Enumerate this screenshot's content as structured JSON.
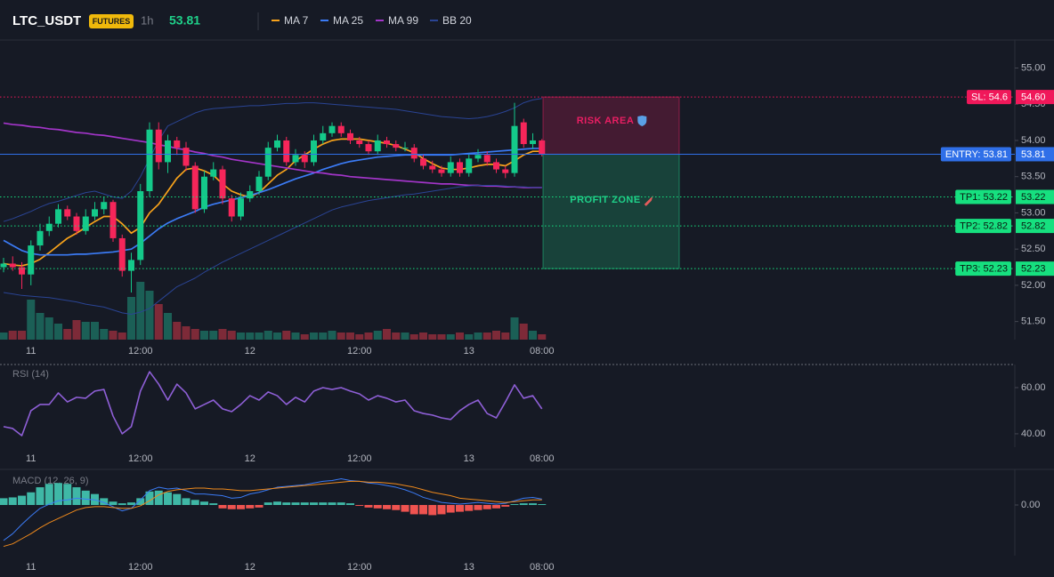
{
  "header": {
    "symbol": "LTC_USDT",
    "badge": "FUTURES",
    "interval": "1h",
    "last_price": 53.81
  },
  "chart_data": [
    {
      "type": "candlestick",
      "categories": [
        null,
        null,
        null,
        "11",
        null,
        null,
        null,
        null,
        null,
        null,
        null,
        null,
        null,
        null,
        null,
        "12:00",
        null,
        null,
        null,
        null,
        null,
        null,
        null,
        null,
        null,
        null,
        null,
        "12",
        null,
        null,
        null,
        null,
        null,
        null,
        null,
        null,
        null,
        null,
        null,
        "12:00",
        null,
        null,
        null,
        null,
        null,
        null,
        null,
        null,
        null,
        null,
        null,
        "13",
        null,
        null,
        null,
        null,
        null,
        null,
        null,
        "08:00"
      ],
      "ylim": [
        51.25,
        55.35
      ],
      "yticks": [
        {
          "value": 55,
          "label": "55.00"
        },
        {
          "value": 54.5,
          "label": "54.50"
        },
        {
          "value": 54,
          "label": "54.00"
        },
        {
          "value": 53.5,
          "label": "53.50"
        },
        {
          "value": 53,
          "label": "53.00"
        },
        {
          "value": 52.5,
          "label": "52.50"
        },
        {
          "value": 52,
          "label": "52.00"
        },
        {
          "value": 51.5,
          "label": "51.50"
        }
      ],
      "up_color": "#14c98a",
      "down_color": "#f6265a",
      "volume_up_color": "#1b5f56",
      "volume_down_color": "#7d2a38",
      "open": [
        52.25,
        52.3,
        52.25,
        52.15,
        52.55,
        52.75,
        52.85,
        53.05,
        52.95,
        52.75,
        52.95,
        53.05,
        53.15,
        52.65,
        52.2,
        52.35,
        53.3,
        54.15,
        53.7,
        54.0,
        53.9,
        53.65,
        53.05,
        53.5,
        53.6,
        53.2,
        52.95,
        53.2,
        53.3,
        53.5,
        53.9,
        54.0,
        53.7,
        53.8,
        53.7,
        54.0,
        54.1,
        54.2,
        54.1,
        54.0,
        53.95,
        53.85,
        54.0,
        53.95,
        53.9,
        53.9,
        53.75,
        53.65,
        53.6,
        53.55,
        53.7,
        53.55,
        53.75,
        53.8,
        53.7,
        53.6,
        53.55,
        54.25,
        53.95,
        54.0
      ],
      "high": [
        52.38,
        52.4,
        52.32,
        52.62,
        52.85,
        52.95,
        53.12,
        53.1,
        53.0,
        53.05,
        53.15,
        53.22,
        53.18,
        52.7,
        52.45,
        53.4,
        54.25,
        54.25,
        54.08,
        54.05,
        53.98,
        53.7,
        53.58,
        53.7,
        53.65,
        53.25,
        53.28,
        53.38,
        53.58,
        53.98,
        54.08,
        54.05,
        53.88,
        53.85,
        54.08,
        54.2,
        54.25,
        54.25,
        54.15,
        54.05,
        54.0,
        54.08,
        54.05,
        54.0,
        53.98,
        53.95,
        53.8,
        53.72,
        53.65,
        53.78,
        53.75,
        53.82,
        53.88,
        53.85,
        53.75,
        53.65,
        54.52,
        54.3,
        54.1,
        54.02
      ],
      "low": [
        52.18,
        52.2,
        51.95,
        52.0,
        52.48,
        52.68,
        52.8,
        52.9,
        52.7,
        52.7,
        52.9,
        52.98,
        52.6,
        52.12,
        51.9,
        52.28,
        53.22,
        53.6,
        53.55,
        53.8,
        53.58,
        53.0,
        53.0,
        53.45,
        53.12,
        52.88,
        52.9,
        53.15,
        53.25,
        53.45,
        53.85,
        53.65,
        53.65,
        53.62,
        53.65,
        53.95,
        54.05,
        54.05,
        53.95,
        53.9,
        53.8,
        53.8,
        53.9,
        53.85,
        53.85,
        53.7,
        53.6,
        53.55,
        53.5,
        53.5,
        53.5,
        53.5,
        53.7,
        53.65,
        53.55,
        53.48,
        53.5,
        53.9,
        53.88,
        53.78
      ],
      "close": [
        52.3,
        52.25,
        52.15,
        52.55,
        52.75,
        52.85,
        53.05,
        52.95,
        52.75,
        52.95,
        53.05,
        53.15,
        52.65,
        52.2,
        52.35,
        53.3,
        54.15,
        53.7,
        54.0,
        53.9,
        53.65,
        53.05,
        53.5,
        53.6,
        53.2,
        52.95,
        53.2,
        53.3,
        53.5,
        53.9,
        54.0,
        53.7,
        53.8,
        53.7,
        54.0,
        54.1,
        54.2,
        54.1,
        54.0,
        53.95,
        53.85,
        54.0,
        53.95,
        53.9,
        53.9,
        53.75,
        53.65,
        53.6,
        53.55,
        53.7,
        53.55,
        53.75,
        53.8,
        53.7,
        53.6,
        53.55,
        54.2,
        53.95,
        54.0,
        53.81
      ],
      "volume": [
        8,
        10,
        10,
        45,
        30,
        25,
        18,
        12,
        22,
        20,
        20,
        12,
        10,
        8,
        48,
        65,
        55,
        40,
        30,
        20,
        15,
        12,
        10,
        10,
        12,
        10,
        8,
        8,
        8,
        10,
        8,
        10,
        8,
        6,
        8,
        8,
        10,
        8,
        8,
        6,
        8,
        10,
        12,
        8,
        8,
        6,
        8,
        6,
        6,
        6,
        8,
        6,
        8,
        8,
        10,
        8,
        25,
        18,
        10,
        6
      ],
      "overlays": [
        {
          "name": "MA 7",
          "color": "#f7a21b",
          "values": [
            52.3,
            52.28,
            52.27,
            52.3,
            52.36,
            52.45,
            52.55,
            52.65,
            52.72,
            52.8,
            52.88,
            52.95,
            52.95,
            52.85,
            52.72,
            52.8,
            53.0,
            53.12,
            53.3,
            53.48,
            53.6,
            53.62,
            53.58,
            53.52,
            53.4,
            53.3,
            53.25,
            53.22,
            53.28,
            53.4,
            53.52,
            53.6,
            53.72,
            53.8,
            53.88,
            53.95,
            54.0,
            54.02,
            54.02,
            54.02,
            54.0,
            53.98,
            53.96,
            53.93,
            53.88,
            53.83,
            53.75,
            53.68,
            53.62,
            53.6,
            53.6,
            53.62,
            53.65,
            53.67,
            53.67,
            53.65,
            53.72,
            53.8,
            53.85,
            53.85
          ]
        },
        {
          "name": "MA 25",
          "color": "#3b7bf5",
          "values": [
            52.62,
            52.55,
            52.48,
            52.44,
            52.42,
            52.42,
            52.42,
            52.42,
            52.43,
            52.43,
            52.44,
            52.45,
            52.46,
            52.48,
            52.5,
            52.58,
            52.68,
            52.78,
            52.86,
            52.92,
            52.97,
            53.02,
            53.08,
            53.12,
            53.15,
            53.18,
            53.21,
            53.24,
            53.28,
            53.32,
            53.37,
            53.42,
            53.47,
            53.51,
            53.55,
            53.6,
            53.64,
            53.68,
            53.71,
            53.73,
            53.75,
            53.77,
            53.78,
            53.79,
            53.8,
            53.8,
            53.8,
            53.8,
            53.8,
            53.8,
            53.81,
            53.82,
            53.83,
            53.84,
            53.85,
            53.86,
            53.87,
            53.88,
            53.89,
            53.89
          ]
        },
        {
          "name": "MA 99",
          "color": "#a335c9",
          "values": [
            54.24,
            54.22,
            54.21,
            54.19,
            54.18,
            54.16,
            54.15,
            54.13,
            54.11,
            54.1,
            54.08,
            54.07,
            54.05,
            54.03,
            54.01,
            53.99,
            53.97,
            53.94,
            53.92,
            53.89,
            53.87,
            53.84,
            53.82,
            53.79,
            53.77,
            53.74,
            53.72,
            53.7,
            53.68,
            53.66,
            53.64,
            53.62,
            53.6,
            53.58,
            53.56,
            53.55,
            53.53,
            53.52,
            53.5,
            53.49,
            53.48,
            53.47,
            53.46,
            53.45,
            53.44,
            53.43,
            53.42,
            53.41,
            53.4,
            53.4,
            53.39,
            53.38,
            53.38,
            53.37,
            53.37,
            53.36,
            53.36,
            53.35,
            53.35,
            53.35
          ]
        },
        {
          "name": "BB 20",
          "color": "#2a4494",
          "upper": [
            52.88,
            52.92,
            52.97,
            53.02,
            53.08,
            53.13,
            53.16,
            53.2,
            53.24,
            53.28,
            53.3,
            53.26,
            53.22,
            53.2,
            53.3,
            53.5,
            53.75,
            54.0,
            54.2,
            54.26,
            54.32,
            54.38,
            54.42,
            54.44,
            54.45,
            54.46,
            54.47,
            54.48,
            54.48,
            54.49,
            54.5,
            54.51,
            54.51,
            54.52,
            54.52,
            54.51,
            54.5,
            54.49,
            54.48,
            54.47,
            54.46,
            54.45,
            54.44,
            54.43,
            54.41,
            54.39,
            54.37,
            54.35,
            54.33,
            54.32,
            54.31,
            54.3,
            54.31,
            54.33,
            54.36,
            54.4,
            54.45,
            54.52,
            54.56,
            54.58
          ],
          "lower": [
            51.9,
            51.88,
            51.86,
            51.85,
            51.84,
            51.83,
            51.81,
            51.79,
            51.77,
            51.74,
            51.72,
            51.7,
            51.66,
            51.62,
            51.6,
            51.63,
            51.68,
            51.78,
            51.88,
            51.98,
            52.04,
            52.1,
            52.18,
            52.25,
            52.32,
            52.38,
            52.44,
            52.5,
            52.56,
            52.62,
            52.68,
            52.74,
            52.8,
            52.86,
            52.92,
            52.98,
            53.04,
            53.08,
            53.11,
            53.14,
            53.17,
            53.19,
            53.21,
            53.23,
            53.25,
            53.26,
            53.28,
            53.3,
            53.32,
            53.34,
            53.36,
            53.37,
            53.38,
            53.38,
            53.38,
            53.37,
            53.36,
            53.36,
            53.35,
            53.35
          ]
        }
      ],
      "levels": [
        {
          "name": "SL: 54.6",
          "value": 54.6,
          "value_label": "54.60",
          "color": "#f0185a",
          "text_color": "#ffffff",
          "style": "dotted"
        },
        {
          "name": "ENTRY: 53.81",
          "value": 53.81,
          "value_label": "53.81",
          "color": "#2f6fe8",
          "text_color": "#ffffff",
          "style": "solid"
        },
        {
          "name": "TP1: 53.22",
          "value": 53.22,
          "value_label": "53.22",
          "color": "#16e07f",
          "text_color": "#0b1a12",
          "style": "dotted"
        },
        {
          "name": "TP2: 52.82",
          "value": 52.82,
          "value_label": "52.82",
          "color": "#16e07f",
          "text_color": "#0b1a12",
          "style": "dotted"
        },
        {
          "name": "TP3: 52.23",
          "value": 52.23,
          "value_label": "52.23",
          "color": "#16e07f",
          "text_color": "#0b1a12",
          "style": "dotted"
        }
      ],
      "zones": [
        {
          "label": "RISK AREA",
          "from": 54.6,
          "to": 53.81,
          "color": "#e91e63"
        },
        {
          "label": "PROFIT ZONE",
          "from": 53.81,
          "to": 52.23,
          "color": "#1fd18a"
        }
      ]
    },
    {
      "type": "line",
      "title": "RSI (14)",
      "categories": [
        null,
        null,
        null,
        "11",
        null,
        null,
        null,
        null,
        null,
        null,
        null,
        null,
        null,
        null,
        null,
        "12:00",
        null,
        null,
        null,
        null,
        null,
        null,
        null,
        null,
        null,
        null,
        null,
        "12",
        null,
        null,
        null,
        null,
        null,
        null,
        null,
        null,
        null,
        null,
        null,
        "12:00",
        null,
        null,
        null,
        null,
        null,
        null,
        null,
        null,
        null,
        null,
        null,
        "13",
        null,
        null,
        null,
        null,
        null,
        null,
        null,
        "08:00"
      ],
      "ylim": [
        34.2,
        70
      ],
      "yticks": [
        {
          "value": 60,
          "label": "60.00"
        },
        {
          "value": 40,
          "label": "40.00"
        }
      ],
      "color": "#8e5fd6",
      "values": [
        43.1,
        42.3,
        39.2,
        50.0,
        52.7,
        52.7,
        57.7,
        53.8,
        55.8,
        55.4,
        58.5,
        59.2,
        47.7,
        40.0,
        43.1,
        58.5,
        66.9,
        61.5,
        54.6,
        61.5,
        57.7,
        50.8,
        52.7,
        54.6,
        50.8,
        49.6,
        52.7,
        56.5,
        54.6,
        58.1,
        56.5,
        52.7,
        55.8,
        53.8,
        58.5,
        60.0,
        59.2,
        60.0,
        58.5,
        57.3,
        54.6,
        56.5,
        55.4,
        53.8,
        54.6,
        50.0,
        48.8,
        48.1,
        46.9,
        46.2,
        50.0,
        52.7,
        54.6,
        48.8,
        46.9,
        53.8,
        61.2,
        55.4,
        56.5,
        50.8
      ]
    },
    {
      "type": "macd",
      "title": "MACD (12, 26, 9)",
      "categories": [
        null,
        null,
        null,
        "11",
        null,
        null,
        null,
        null,
        null,
        null,
        null,
        null,
        null,
        null,
        null,
        "12:00",
        null,
        null,
        null,
        null,
        null,
        null,
        null,
        null,
        null,
        null,
        null,
        "12",
        null,
        null,
        null,
        null,
        null,
        null,
        null,
        null,
        null,
        null,
        null,
        "12:00",
        null,
        null,
        null,
        null,
        null,
        null,
        null,
        null,
        null,
        null,
        null,
        "13",
        null,
        null,
        null,
        null,
        null,
        null,
        null,
        "08:00"
      ],
      "ylim": [
        -0.6,
        0.4
      ],
      "yticks": [
        {
          "value": 0,
          "label": "0.00"
        }
      ],
      "macd_color": "#3b7bf5",
      "signal_color": "#f08a1c",
      "hist_up_color": "#3fb8a6",
      "hist_down_color": "#ef5350",
      "macd": [
        -0.42,
        -0.34,
        -0.23,
        -0.13,
        -0.04,
        0.01,
        0.05,
        0.06,
        0.08,
        0.07,
        0.06,
        0.03,
        -0.02,
        -0.07,
        -0.04,
        0.06,
        0.17,
        0.21,
        0.19,
        0.2,
        0.17,
        0.13,
        0.13,
        0.12,
        0.11,
        0.08,
        0.09,
        0.13,
        0.15,
        0.18,
        0.21,
        0.22,
        0.23,
        0.24,
        0.26,
        0.28,
        0.29,
        0.31,
        0.29,
        0.28,
        0.26,
        0.25,
        0.23,
        0.21,
        0.18,
        0.14,
        0.09,
        0.06,
        0.03,
        0.02,
        0.01,
        0.02,
        0.03,
        0.02,
        0.01,
        0.02,
        0.05,
        0.08,
        0.09,
        0.07
      ],
      "signal": [
        -0.49,
        -0.46,
        -0.4,
        -0.34,
        -0.27,
        -0.21,
        -0.16,
        -0.11,
        -0.06,
        -0.03,
        -0.02,
        -0.02,
        -0.03,
        -0.04,
        -0.04,
        -0.01,
        0.05,
        0.12,
        0.16,
        0.18,
        0.19,
        0.2,
        0.2,
        0.19,
        0.19,
        0.18,
        0.17,
        0.17,
        0.18,
        0.19,
        0.2,
        0.21,
        0.22,
        0.23,
        0.24,
        0.25,
        0.26,
        0.27,
        0.28,
        0.28,
        0.27,
        0.27,
        0.26,
        0.25,
        0.23,
        0.21,
        0.18,
        0.15,
        0.13,
        0.11,
        0.08,
        0.07,
        0.06,
        0.05,
        0.04,
        0.03,
        0.04,
        0.05,
        0.06,
        0.06
      ],
      "histogram": [
        0.08,
        0.09,
        0.11,
        0.15,
        0.21,
        0.25,
        0.26,
        0.25,
        0.21,
        0.17,
        0.13,
        0.08,
        0.04,
        0.02,
        0.03,
        0.08,
        0.16,
        0.17,
        0.15,
        0.13,
        0.08,
        0.06,
        0.04,
        0.02,
        -0.04,
        -0.05,
        -0.05,
        -0.04,
        -0.03,
        0.03,
        0.04,
        0.03,
        0.03,
        0.03,
        0.03,
        0.03,
        0.03,
        0.03,
        0.02,
        -0.01,
        -0.03,
        -0.04,
        -0.05,
        -0.06,
        -0.08,
        -0.11,
        -0.11,
        -0.12,
        -0.11,
        -0.09,
        -0.08,
        -0.07,
        -0.06,
        -0.05,
        -0.04,
        -0.02,
        0.01,
        0.02,
        0.02,
        0.01
      ]
    }
  ]
}
